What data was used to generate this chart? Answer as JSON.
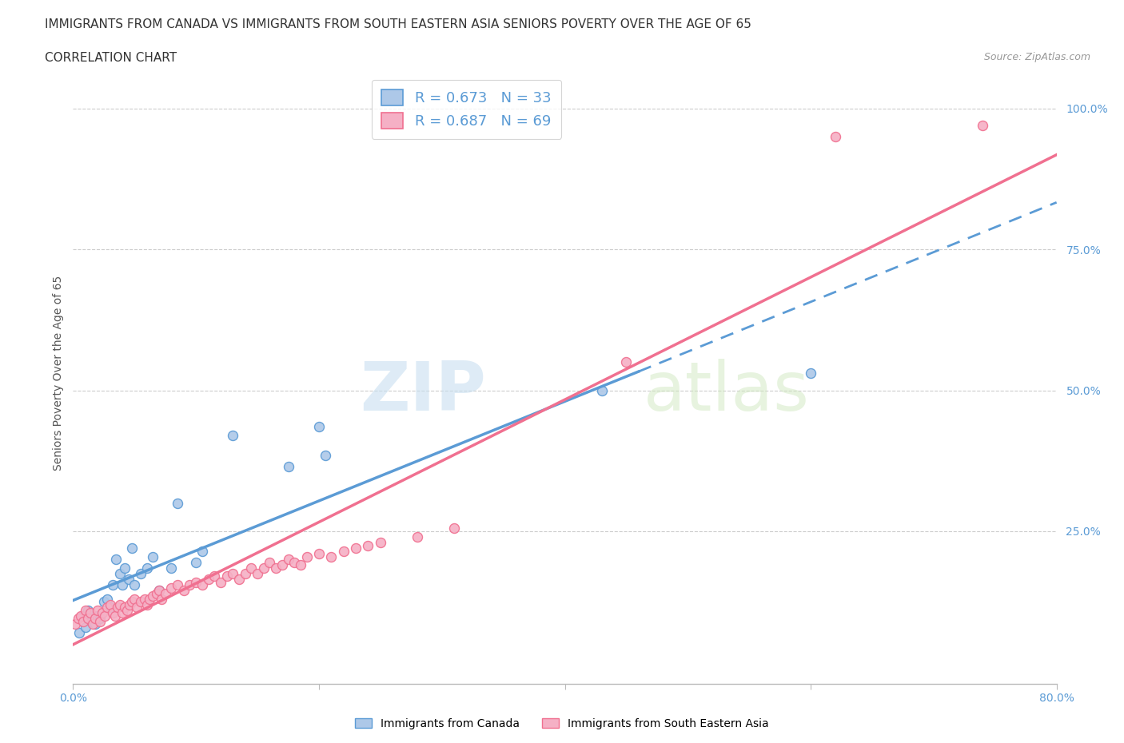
{
  "title": "IMMIGRANTS FROM CANADA VS IMMIGRANTS FROM SOUTH EASTERN ASIA SENIORS POVERTY OVER THE AGE OF 65",
  "subtitle": "CORRELATION CHART",
  "source": "Source: ZipAtlas.com",
  "ylabel": "Seniors Poverty Over the Age of 65",
  "xmin": 0.0,
  "xmax": 0.8,
  "ymin": -0.02,
  "ymax": 1.08,
  "legend_label1": "Immigrants from Canada",
  "legend_label2": "Immigrants from South Eastern Asia",
  "r1": 0.673,
  "n1": 33,
  "r2": 0.687,
  "n2": 69,
  "color1": "#adc8e8",
  "color2": "#f5b0c5",
  "line_color1": "#5b9bd5",
  "line_color2": "#f07090",
  "watermark_zip": "ZIP",
  "watermark_atlas": "atlas",
  "blue_scatter": [
    [
      0.005,
      0.07
    ],
    [
      0.008,
      0.1
    ],
    [
      0.01,
      0.08
    ],
    [
      0.012,
      0.11
    ],
    [
      0.015,
      0.09
    ],
    [
      0.018,
      0.085
    ],
    [
      0.02,
      0.1
    ],
    [
      0.022,
      0.095
    ],
    [
      0.025,
      0.125
    ],
    [
      0.028,
      0.13
    ],
    [
      0.03,
      0.115
    ],
    [
      0.032,
      0.155
    ],
    [
      0.035,
      0.2
    ],
    [
      0.038,
      0.175
    ],
    [
      0.04,
      0.155
    ],
    [
      0.042,
      0.185
    ],
    [
      0.045,
      0.165
    ],
    [
      0.048,
      0.22
    ],
    [
      0.05,
      0.155
    ],
    [
      0.055,
      0.175
    ],
    [
      0.06,
      0.185
    ],
    [
      0.065,
      0.205
    ],
    [
      0.07,
      0.145
    ],
    [
      0.08,
      0.185
    ],
    [
      0.085,
      0.3
    ],
    [
      0.1,
      0.195
    ],
    [
      0.105,
      0.215
    ],
    [
      0.13,
      0.42
    ],
    [
      0.175,
      0.365
    ],
    [
      0.2,
      0.435
    ],
    [
      0.205,
      0.385
    ],
    [
      0.43,
      0.5
    ],
    [
      0.6,
      0.53
    ]
  ],
  "pink_scatter": [
    [
      0.002,
      0.085
    ],
    [
      0.004,
      0.095
    ],
    [
      0.006,
      0.1
    ],
    [
      0.008,
      0.09
    ],
    [
      0.01,
      0.11
    ],
    [
      0.012,
      0.095
    ],
    [
      0.014,
      0.105
    ],
    [
      0.016,
      0.085
    ],
    [
      0.018,
      0.095
    ],
    [
      0.02,
      0.11
    ],
    [
      0.022,
      0.09
    ],
    [
      0.024,
      0.105
    ],
    [
      0.026,
      0.1
    ],
    [
      0.028,
      0.115
    ],
    [
      0.03,
      0.12
    ],
    [
      0.032,
      0.105
    ],
    [
      0.034,
      0.1
    ],
    [
      0.036,
      0.115
    ],
    [
      0.038,
      0.12
    ],
    [
      0.04,
      0.105
    ],
    [
      0.042,
      0.115
    ],
    [
      0.044,
      0.11
    ],
    [
      0.046,
      0.12
    ],
    [
      0.048,
      0.125
    ],
    [
      0.05,
      0.13
    ],
    [
      0.052,
      0.115
    ],
    [
      0.055,
      0.125
    ],
    [
      0.058,
      0.13
    ],
    [
      0.06,
      0.12
    ],
    [
      0.062,
      0.13
    ],
    [
      0.065,
      0.135
    ],
    [
      0.068,
      0.14
    ],
    [
      0.07,
      0.145
    ],
    [
      0.072,
      0.13
    ],
    [
      0.075,
      0.14
    ],
    [
      0.08,
      0.15
    ],
    [
      0.085,
      0.155
    ],
    [
      0.09,
      0.145
    ],
    [
      0.095,
      0.155
    ],
    [
      0.1,
      0.16
    ],
    [
      0.105,
      0.155
    ],
    [
      0.11,
      0.165
    ],
    [
      0.115,
      0.17
    ],
    [
      0.12,
      0.16
    ],
    [
      0.125,
      0.17
    ],
    [
      0.13,
      0.175
    ],
    [
      0.135,
      0.165
    ],
    [
      0.14,
      0.175
    ],
    [
      0.145,
      0.185
    ],
    [
      0.15,
      0.175
    ],
    [
      0.155,
      0.185
    ],
    [
      0.16,
      0.195
    ],
    [
      0.165,
      0.185
    ],
    [
      0.17,
      0.19
    ],
    [
      0.175,
      0.2
    ],
    [
      0.18,
      0.195
    ],
    [
      0.185,
      0.19
    ],
    [
      0.19,
      0.205
    ],
    [
      0.2,
      0.21
    ],
    [
      0.21,
      0.205
    ],
    [
      0.22,
      0.215
    ],
    [
      0.23,
      0.22
    ],
    [
      0.24,
      0.225
    ],
    [
      0.25,
      0.23
    ],
    [
      0.28,
      0.24
    ],
    [
      0.31,
      0.255
    ],
    [
      0.45,
      0.55
    ],
    [
      0.62,
      0.95
    ],
    [
      0.74,
      0.97
    ]
  ]
}
